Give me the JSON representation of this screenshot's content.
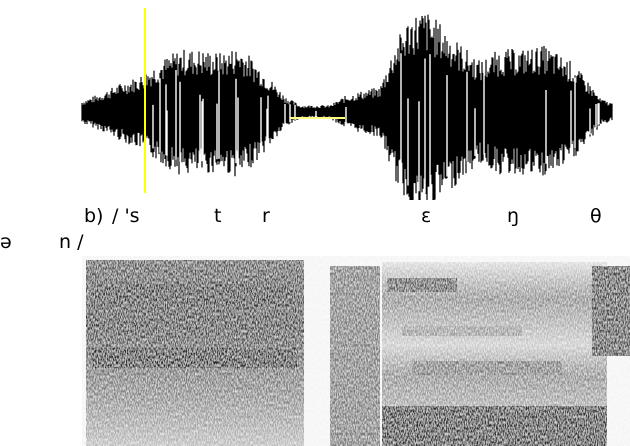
{
  "figure": {
    "label": "b)",
    "transcription_line1": [
      "/ 's",
      "t",
      "r",
      "ɛ",
      "ŋ",
      "θ"
    ],
    "transcription_line2": [
      "ə",
      "n /"
    ],
    "colors": {
      "waveform": "#000000",
      "cursor": "#ffff00",
      "pause_line": "#ffff80",
      "spectrogram_dark": "#222222",
      "background": "#ffffff"
    }
  }
}
